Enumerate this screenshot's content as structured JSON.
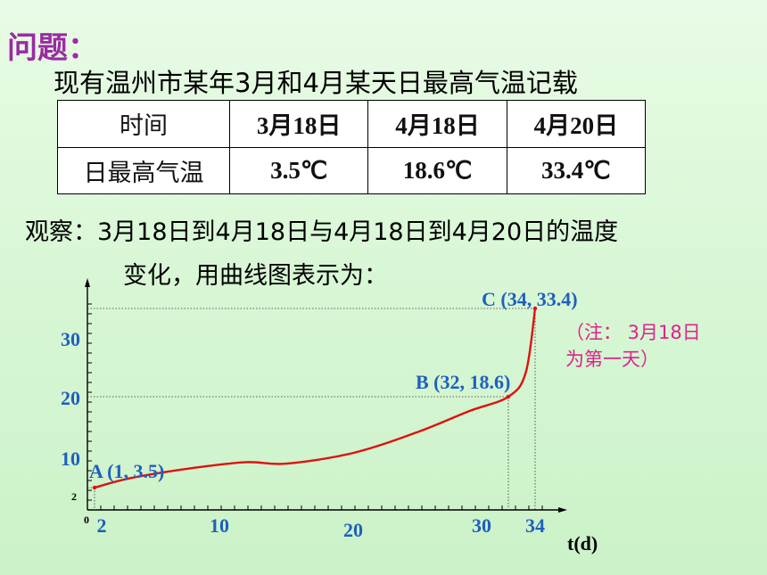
{
  "heading": "问题：",
  "intro": "现有温州市某年3月和4月某天日最高气温记载",
  "table": {
    "headers": [
      "时间",
      "3月18日",
      "4月18日",
      "4月20日"
    ],
    "row_label": "日最高气温",
    "values": [
      "3.5℃",
      "18.6℃",
      "33.4℃"
    ]
  },
  "observation": {
    "line1": "观察：3月18日到4月18日与4月18日到4月20日的温度",
    "line2": "变化，用曲线图表示为："
  },
  "note": {
    "line1": "（注：  3月18日",
    "line2": "为第一天）"
  },
  "colors": {
    "heading": "#9b2aa4",
    "curve": "#e01010",
    "point_labels": "#1f5fbf",
    "axis_numbers": "#1f5fbf",
    "note": "#e2208e"
  },
  "chart_data": {
    "type": "line",
    "xlabel": "t(d)",
    "origin_label": "0",
    "x_ticks": [
      "2",
      "10",
      "20",
      "30",
      "34"
    ],
    "y_ticks": [
      "2",
      "10",
      "20",
      "30"
    ],
    "points": [
      {
        "name": "A",
        "label": "A (1, 3.5)",
        "x": 1,
        "y": 3.5
      },
      {
        "name": "B",
        "label": "B (32, 18.6)",
        "x": 32,
        "y": 18.6
      },
      {
        "name": "C",
        "label": "C (34, 33.4)",
        "x": 34,
        "y": 33.4
      }
    ],
    "curve": [
      {
        "x": 1,
        "y": 3.5
      },
      {
        "x": 4,
        "y": 5.5
      },
      {
        "x": 8,
        "y": 7.5
      },
      {
        "x": 12,
        "y": 8.8
      },
      {
        "x": 15,
        "y": 8.5
      },
      {
        "x": 20,
        "y": 10.5
      },
      {
        "x": 25,
        "y": 13.5
      },
      {
        "x": 29,
        "y": 16.5
      },
      {
        "x": 32,
        "y": 18.6
      },
      {
        "x": 33.3,
        "y": 24
      },
      {
        "x": 34,
        "y": 33.4
      }
    ]
  }
}
